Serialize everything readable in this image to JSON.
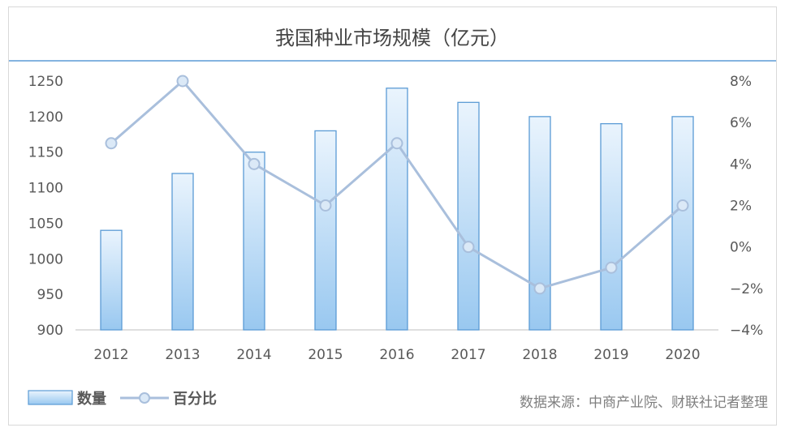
{
  "title": "我国种业市场规模（亿元）",
  "source": "数据来源：中商产业院、财联社记者整理",
  "colors": {
    "bar_fill_top": "#eaf4fd",
    "bar_fill_bottom": "#99c8f0",
    "bar_stroke": "#5b9bd5",
    "line": "#a9bfdc",
    "marker_fill": "#dbe9f7",
    "marker_stroke": "#a9bfdc",
    "title_rule": "#5b9bd5",
    "frame": "#d9d9d9"
  },
  "chart_data": {
    "type": "bar",
    "title": "我国种业市场规模（亿元）",
    "categories": [
      "2012",
      "2013",
      "2014",
      "2015",
      "2016",
      "2017",
      "2018",
      "2019",
      "2020"
    ],
    "series": [
      {
        "name": "数量",
        "type": "bar",
        "axis": "left",
        "values": [
          1040,
          1120,
          1150,
          1180,
          1240,
          1220,
          1200,
          1190,
          1200
        ]
      },
      {
        "name": "百分比",
        "type": "line",
        "axis": "right",
        "values": [
          5,
          8,
          4,
          2,
          5,
          0,
          -2,
          -1,
          2
        ]
      }
    ],
    "y_left": {
      "ylim": [
        900,
        1250
      ],
      "ticks": [
        "900",
        "950",
        "1000",
        "1050",
        "1100",
        "1150",
        "1200",
        "1250"
      ]
    },
    "y_right": {
      "ylim": [
        -4,
        8
      ],
      "ticks": [
        "−4%",
        "−2%",
        "0%",
        "2%",
        "4%",
        "6%",
        "8%"
      ]
    },
    "grid": false,
    "legend": "bottom-left"
  }
}
